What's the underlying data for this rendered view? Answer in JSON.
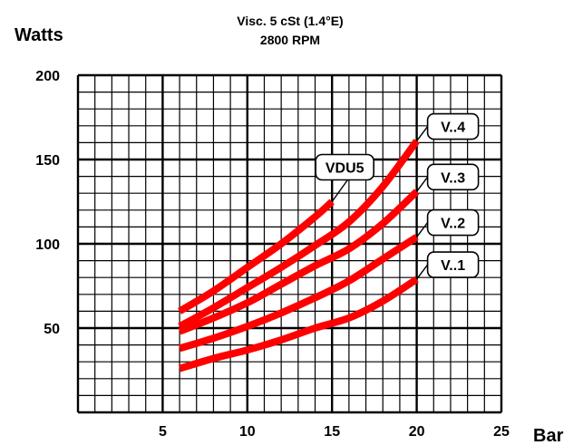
{
  "chart_data": {
    "type": "line",
    "title": "Visc. 5 cSt (1.4°E)",
    "subtitle": "2800 RPM",
    "ylabel": "Watts",
    "xlabel": "Bar",
    "xlim": [
      0,
      25
    ],
    "ylim": [
      0,
      200
    ],
    "x_ticks": [
      "5",
      "10",
      "15",
      "20",
      "25"
    ],
    "y_ticks": [
      "50",
      "100",
      "150",
      "200"
    ],
    "grid": true,
    "line_color": "#ff0000",
    "series": [
      {
        "name": "VDU5",
        "x": [
          6,
          8,
          10,
          12,
          14,
          15
        ],
        "y": [
          60,
          72,
          86,
          100,
          116,
          125
        ]
      },
      {
        "name": "V..4",
        "x": [
          6,
          8,
          10,
          12,
          14,
          16,
          18,
          20
        ],
        "y": [
          51,
          62,
          74,
          86,
          99,
          113,
          134,
          161
        ]
      },
      {
        "name": "V..3",
        "x": [
          6,
          8,
          10,
          12,
          14,
          16,
          18,
          20
        ],
        "y": [
          48,
          56,
          65,
          76,
          87,
          97,
          112,
          131
        ]
      },
      {
        "name": "V..2",
        "x": [
          6,
          8,
          10,
          12,
          14,
          16,
          18,
          20
        ],
        "y": [
          38,
          44,
          51,
          59,
          68,
          78,
          91,
          104
        ]
      },
      {
        "name": "V..1",
        "x": [
          6,
          8,
          10,
          12,
          14,
          16,
          18,
          20
        ],
        "y": [
          26,
          32,
          37,
          43,
          50,
          56,
          66,
          79
        ]
      }
    ]
  }
}
